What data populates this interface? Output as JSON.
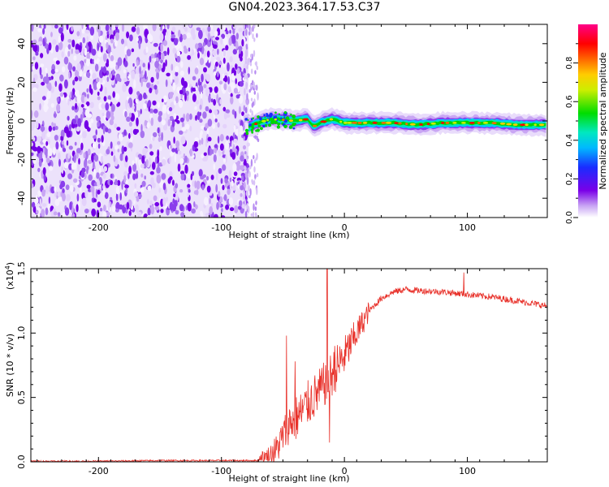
{
  "title": "GN04.2023.364.17.53.C37",
  "chart_data": [
    {
      "type": "heatmap",
      "title": "",
      "xlabel": "Height of straight line (km)",
      "ylabel": "Frequency (Hz)",
      "xlim": [
        -255,
        165
      ],
      "ylim": [
        -50,
        50
      ],
      "x_ticks": [
        -200,
        -100,
        0,
        100
      ],
      "y_ticks": [
        -40,
        -20,
        0,
        20,
        40
      ],
      "noise_region_x": [
        -255,
        -78
      ],
      "signal_track": {
        "x": [
          -78,
          -70,
          -60,
          -50,
          -40,
          -30,
          -25,
          -20,
          -10,
          0,
          20,
          40,
          60,
          80,
          100,
          120,
          140,
          160,
          165
        ],
        "frequency": [
          -3,
          -1,
          1,
          0.5,
          0,
          1,
          -3,
          -1,
          1,
          -1,
          -1,
          -1,
          -2,
          -1,
          -1,
          -1,
          -2,
          -2,
          -2
        ]
      },
      "colorbar": {
        "label": "Normalized spectral amplitude",
        "range": [
          0.0,
          1.0
        ],
        "ticks": [
          "0.0",
          "0.2",
          "0.4",
          "0.6",
          "0.8"
        ]
      }
    },
    {
      "type": "line",
      "title": "",
      "xlabel": "Height of straight line (km)",
      "ylabel": "SNR (10 * v/v)",
      "y_multiplier": "(x10",
      "y_multiplier_exp": "4",
      "y_multiplier_close": ")",
      "xlim": [
        -255,
        165
      ],
      "ylim": [
        0,
        1.5
      ],
      "x_ticks": [
        -200,
        -100,
        0,
        100
      ],
      "y_ticks": [
        "0.0",
        "0.5",
        "1.0",
        "1.5"
      ],
      "series": [
        {
          "color": "#e8312a",
          "x": [
            -255,
            -200,
            -150,
            -100,
            -70,
            -62,
            -55,
            -50,
            -45,
            -40,
            -35,
            -30,
            -25,
            -20,
            -15,
            -10,
            -5,
            0,
            10,
            20,
            30,
            40,
            50,
            60,
            80,
            100,
            120,
            140,
            165
          ],
          "y": [
            0.005,
            0.005,
            0.01,
            0.01,
            0.01,
            0.03,
            0.1,
            0.2,
            0.3,
            0.33,
            0.38,
            0.45,
            0.5,
            0.55,
            0.62,
            0.68,
            0.75,
            0.82,
            1.0,
            1.17,
            1.27,
            1.32,
            1.34,
            1.33,
            1.32,
            1.3,
            1.28,
            1.25,
            1.21
          ]
        }
      ],
      "spikes": [
        {
          "x": -47,
          "y": 0.98
        },
        {
          "x": -40,
          "y": 0.78
        },
        {
          "x": -14,
          "y": 1.55
        },
        {
          "x": -12,
          "y": 0.15
        },
        {
          "x": -8,
          "y": 0.9
        },
        {
          "x": 97,
          "y": 1.47
        }
      ]
    }
  ]
}
